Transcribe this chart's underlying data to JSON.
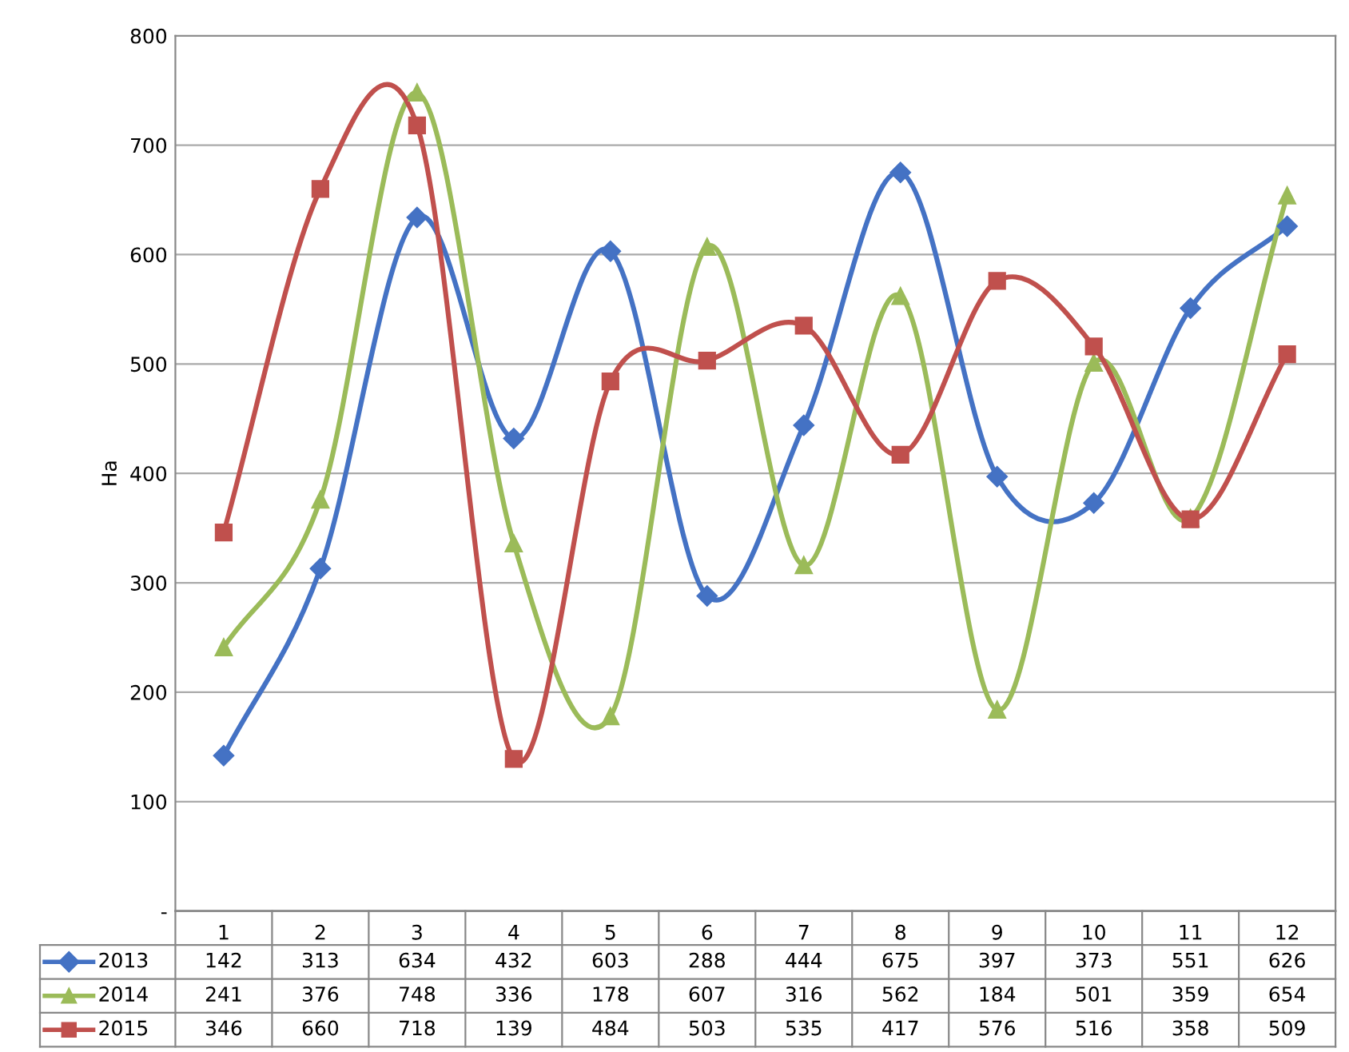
{
  "chart_data": {
    "type": "line",
    "ylabel": "Ha",
    "categories": [
      "1",
      "2",
      "3",
      "4",
      "5",
      "6",
      "7",
      "8",
      "9",
      "10",
      "11",
      "12"
    ],
    "series": [
      {
        "name": "2013",
        "color": "#4472c4",
        "marker": "diamond",
        "values": [
          142,
          313,
          634,
          432,
          603,
          288,
          444,
          675,
          397,
          373,
          551,
          626
        ]
      },
      {
        "name": "2014",
        "color": "#9bbb59",
        "marker": "triangle",
        "values": [
          241,
          376,
          748,
          336,
          178,
          607,
          316,
          562,
          184,
          501,
          359,
          654
        ]
      },
      {
        "name": "2015",
        "color": "#c0504d",
        "marker": "square",
        "values": [
          346,
          660,
          718,
          139,
          484,
          503,
          535,
          417,
          576,
          516,
          358,
          509
        ]
      }
    ],
    "ylim": [
      0,
      800
    ],
    "yticks": [
      {
        "value": 0,
        "label": "-"
      },
      100,
      200,
      300,
      400,
      500,
      600,
      700,
      800
    ],
    "grid": "y",
    "legend": "bottom",
    "data_labels": true,
    "line_style": "solid"
  }
}
